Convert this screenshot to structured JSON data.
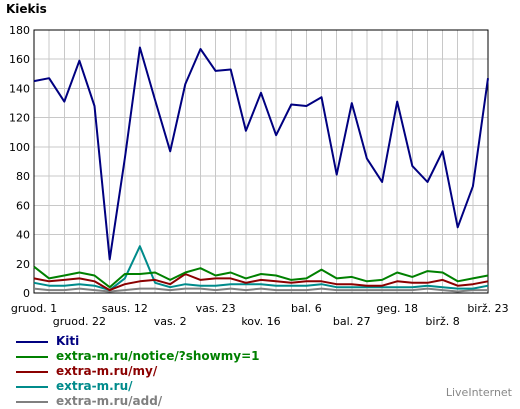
{
  "chart_data": {
    "type": "line",
    "ylabel": "Kiekis",
    "ylim": [
      0,
      180
    ],
    "yticks": [
      0,
      20,
      40,
      60,
      80,
      100,
      120,
      140,
      160,
      180
    ],
    "grid": true,
    "legend_position": "bottom-left",
    "xtick_labels_row1": [
      "gruod. 1",
      "saus. 12",
      "vas. 23",
      "bal. 6",
      "geg. 18",
      "birž. 23"
    ],
    "xtick_labels_row2": [
      "gruod. 22",
      "vas. 2",
      "kov. 16",
      "bal. 27",
      "birž. 8"
    ],
    "series": [
      {
        "name": "Kiti",
        "color": "#000080",
        "values": [
          145,
          147,
          131,
          159,
          128,
          23,
          92,
          168,
          132,
          97,
          143,
          167,
          152,
          153,
          111,
          137,
          108,
          129,
          128,
          134,
          81,
          130,
          92,
          76,
          131,
          87,
          76,
          97,
          45,
          73,
          147
        ]
      },
      {
        "name": "extra-m.ru/notice/?showmy=1",
        "color": "#008000",
        "values": [
          18,
          10,
          12,
          14,
          12,
          4,
          13,
          13,
          14,
          9,
          14,
          17,
          12,
          14,
          10,
          13,
          12,
          9,
          10,
          16,
          10,
          11,
          8,
          9,
          14,
          11,
          15,
          14,
          8,
          10,
          12
        ]
      },
      {
        "name": "extra-m.ru/my/",
        "color": "#8b0000",
        "values": [
          10,
          8,
          9,
          10,
          8,
          2,
          6,
          8,
          9,
          6,
          13,
          9,
          10,
          10,
          7,
          9,
          8,
          7,
          8,
          8,
          6,
          6,
          5,
          5,
          8,
          7,
          7,
          9,
          5,
          6,
          8
        ]
      },
      {
        "name": "extra-m.ru/",
        "color": "#008b8b",
        "values": [
          7,
          5,
          5,
          6,
          5,
          2,
          10,
          32,
          7,
          4,
          6,
          5,
          5,
          6,
          6,
          6,
          5,
          5,
          5,
          6,
          4,
          4,
          4,
          4,
          4,
          4,
          5,
          4,
          3,
          3,
          5
        ]
      },
      {
        "name": "extra-m.ru/add/",
        "color": "#808080",
        "values": [
          3,
          2,
          2,
          3,
          2,
          1,
          2,
          3,
          3,
          2,
          3,
          3,
          2,
          3,
          2,
          3,
          2,
          2,
          2,
          3,
          2,
          2,
          2,
          2,
          2,
          2,
          3,
          2,
          1,
          2,
          2
        ]
      }
    ]
  },
  "brand_text": "LiveInternet"
}
